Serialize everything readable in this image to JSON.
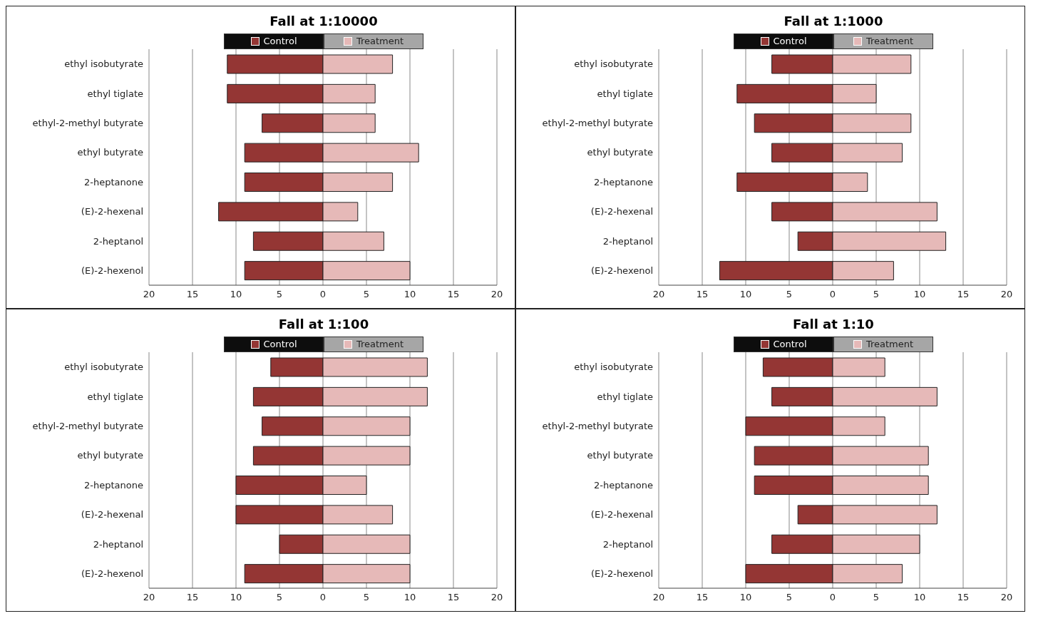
{
  "chart_data": [
    {
      "type": "bar",
      "orientation": "horizontal",
      "stacked": true,
      "title": "Fall at 1:10000",
      "categories": [
        "ethyl isobutyrate",
        "ethyl tiglate",
        "ethyl-2-methyl butyrate",
        "ethyl butyrate",
        "2-heptanone",
        "(E)-2-hexenal",
        "2-heptanol",
        "(E)-2-hexenol"
      ],
      "series": [
        {
          "name": "Control",
          "color": "#943634",
          "values": [
            -11,
            -11,
            -7,
            -9,
            -9,
            -12,
            -8,
            -9
          ]
        },
        {
          "name": "Treatment",
          "color": "#e6b9b8",
          "values": [
            8,
            6,
            6,
            11,
            8,
            4,
            7,
            10
          ]
        }
      ],
      "xlim": [
        -20,
        20
      ],
      "xticks": [
        {
          "value": -20,
          "label": "20"
        },
        {
          "value": -15,
          "label": "15"
        },
        {
          "value": -10,
          "label": "10"
        },
        {
          "value": -5,
          "label": "5"
        },
        0,
        5,
        10,
        15,
        20
      ],
      "grid": "x",
      "legend": "top"
    },
    {
      "type": "bar",
      "orientation": "horizontal",
      "stacked": true,
      "title": "Fall at 1:1000",
      "categories": [
        "ethyl isobutyrate",
        "ethyl tiglate",
        "ethyl-2-methyl butyrate",
        "ethyl butyrate",
        "2-heptanone",
        "(E)-2-hexenal",
        "2-heptanol",
        "(E)-2-hexenol"
      ],
      "series": [
        {
          "name": "Control",
          "color": "#943634",
          "values": [
            -7,
            -11,
            -9,
            -7,
            -11,
            -7,
            -4,
            -13
          ]
        },
        {
          "name": "Treatment",
          "color": "#e6b9b8",
          "values": [
            9,
            5,
            9,
            8,
            4,
            12,
            13,
            7
          ]
        }
      ],
      "xlim": [
        -20,
        20
      ],
      "xticks": [
        {
          "value": -20,
          "label": "20"
        },
        {
          "value": -15,
          "label": "15"
        },
        {
          "value": -10,
          "label": "10"
        },
        {
          "value": -5,
          "label": "5"
        },
        0,
        5,
        10,
        15,
        20
      ],
      "grid": "x",
      "legend": "top"
    },
    {
      "type": "bar",
      "orientation": "horizontal",
      "stacked": true,
      "title": "Fall at 1:100",
      "categories": [
        "ethyl isobutyrate",
        "ethyl tiglate",
        "ethyl-2-methyl butyrate",
        "ethyl butyrate",
        "2-heptanone",
        "(E)-2-hexenal",
        "2-heptanol",
        "(E)-2-hexenol"
      ],
      "series": [
        {
          "name": "Control",
          "color": "#943634",
          "values": [
            -6,
            -8,
            -7,
            -8,
            -10,
            -10,
            -5,
            -9
          ]
        },
        {
          "name": "Treatment",
          "color": "#e6b9b8",
          "values": [
            12,
            12,
            10,
            10,
            5,
            8,
            10,
            10
          ]
        }
      ],
      "xlim": [
        -20,
        20
      ],
      "xticks": [
        {
          "value": -20,
          "label": "20"
        },
        {
          "value": -15,
          "label": "15"
        },
        {
          "value": -10,
          "label": "10"
        },
        {
          "value": -5,
          "label": "5"
        },
        0,
        5,
        10,
        15,
        20
      ],
      "grid": "x",
      "legend": "top"
    },
    {
      "type": "bar",
      "orientation": "horizontal",
      "stacked": true,
      "title": "Fall at 1:10",
      "categories": [
        "ethyl isobutyrate",
        "ethyl tiglate",
        "ethyl-2-methyl butyrate",
        "ethyl butyrate",
        "2-heptanone",
        "(E)-2-hexenal",
        "2-heptanol",
        "(E)-2-hexenol"
      ],
      "series": [
        {
          "name": "Control",
          "color": "#943634",
          "values": [
            -8,
            -7,
            -10,
            -9,
            -9,
            -4,
            -7,
            -10
          ]
        },
        {
          "name": "Treatment",
          "color": "#e6b9b8",
          "values": [
            6,
            12,
            6,
            11,
            11,
            12,
            10,
            8
          ]
        }
      ],
      "xlim": [
        -20,
        20
      ],
      "xticks": [
        {
          "value": -20,
          "label": "20"
        },
        {
          "value": -15,
          "label": "15"
        },
        {
          "value": -10,
          "label": "10"
        },
        {
          "value": -5,
          "label": "5"
        },
        0,
        5,
        10,
        15,
        20
      ],
      "grid": "x",
      "legend": "top"
    }
  ]
}
